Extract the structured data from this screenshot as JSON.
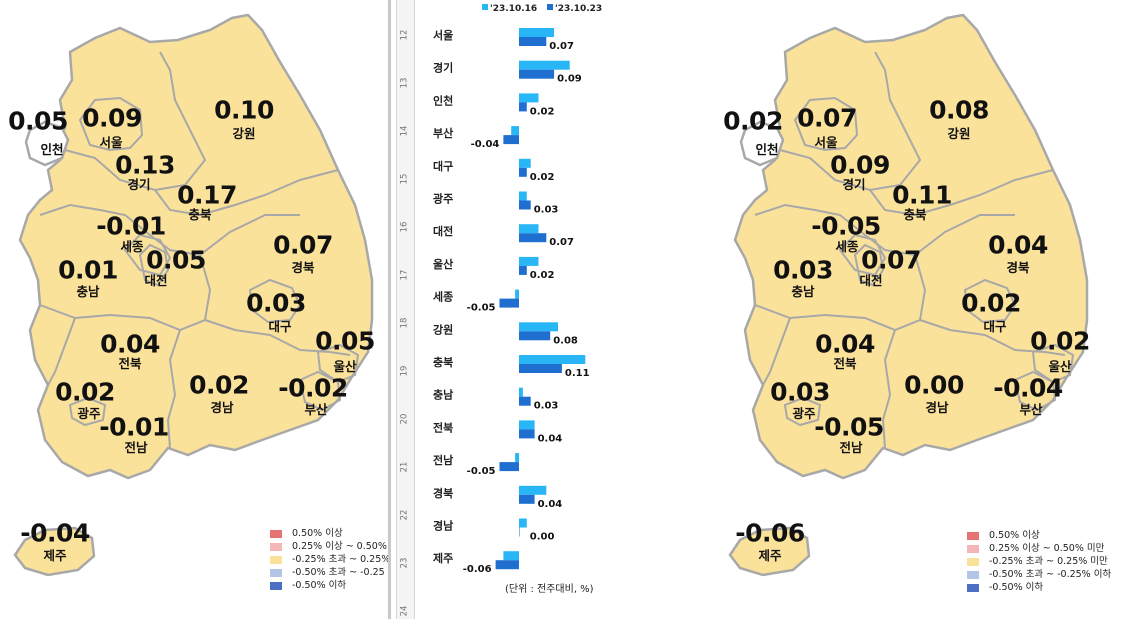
{
  "left_map": {
    "regions": [
      {
        "key": "incheon",
        "name": "인천",
        "value": "0.05"
      },
      {
        "key": "seoul",
        "name": "서울",
        "value": "0.09"
      },
      {
        "key": "gyeonggi",
        "name": "경기",
        "value": "0.13"
      },
      {
        "key": "gangwon",
        "name": "강원",
        "value": "0.10"
      },
      {
        "key": "chungbuk",
        "name": "충북",
        "value": "0.17"
      },
      {
        "key": "sejong",
        "name": "세종",
        "value": "-0.01"
      },
      {
        "key": "daejeon",
        "name": "대전",
        "value": "0.05"
      },
      {
        "key": "chungnam",
        "name": "충남",
        "value": "0.01"
      },
      {
        "key": "gyeongbuk",
        "name": "경북",
        "value": "0.07"
      },
      {
        "key": "daegu",
        "name": "대구",
        "value": "0.03"
      },
      {
        "key": "ulsan",
        "name": "울산",
        "value": "0.05"
      },
      {
        "key": "jeonbuk",
        "name": "전북",
        "value": "0.04"
      },
      {
        "key": "gwangju",
        "name": "광주",
        "value": "0.02"
      },
      {
        "key": "jeonnam",
        "name": "전남",
        "value": "-0.01"
      },
      {
        "key": "gyeongnam",
        "name": "경남",
        "value": "0.02"
      },
      {
        "key": "busan",
        "name": "부산",
        "value": "-0.02"
      },
      {
        "key": "jeju",
        "name": "제주",
        "value": "-0.04"
      }
    ],
    "legend": [
      {
        "label": "0.50% 이상",
        "color": "#e57373"
      },
      {
        "label": "0.25% 이상 ~ 0.50%",
        "color": "#f4b6b6"
      },
      {
        "label": "-0.25% 초과 ~ 0.25%",
        "color": "#fbe29b"
      },
      {
        "label": "-0.50% 초과 ~ -0.25",
        "color": "#b4c4e6"
      },
      {
        "label": "-0.50% 이하",
        "color": "#4a6fc4"
      }
    ]
  },
  "right_map": {
    "regions": [
      {
        "key": "incheon",
        "name": "인천",
        "value": "0.02"
      },
      {
        "key": "seoul",
        "name": "서울",
        "value": "0.07"
      },
      {
        "key": "gyeonggi",
        "name": "경기",
        "value": "0.09"
      },
      {
        "key": "gangwon",
        "name": "강원",
        "value": "0.08"
      },
      {
        "key": "chungbuk",
        "name": "충북",
        "value": "0.11"
      },
      {
        "key": "sejong",
        "name": "세종",
        "value": "-0.05"
      },
      {
        "key": "daejeon",
        "name": "대전",
        "value": "0.07"
      },
      {
        "key": "chungnam",
        "name": "충남",
        "value": "0.03"
      },
      {
        "key": "gyeongbuk",
        "name": "경북",
        "value": "0.04"
      },
      {
        "key": "daegu",
        "name": "대구",
        "value": "0.02"
      },
      {
        "key": "ulsan",
        "name": "울산",
        "value": "0.02"
      },
      {
        "key": "jeonbuk",
        "name": "전북",
        "value": "0.04"
      },
      {
        "key": "gwangju",
        "name": "광주",
        "value": "0.03"
      },
      {
        "key": "jeonnam",
        "name": "전남",
        "value": "-0.05"
      },
      {
        "key": "gyeongnam",
        "name": "경남",
        "value": "0.00"
      },
      {
        "key": "busan",
        "name": "부산",
        "value": "-0.04"
      },
      {
        "key": "jeju",
        "name": "제주",
        "value": "-0.06"
      }
    ],
    "legend": [
      {
        "label": "0.50% 이상",
        "color": "#e57373"
      },
      {
        "label": "0.25% 이상 ~ 0.50% 미만",
        "color": "#f4b6b6"
      },
      {
        "label": "-0.25% 초과 ~ 0.25% 미만",
        "color": "#fbe29b"
      },
      {
        "label": "-0.50% 초과 ~ -0.25% 이하",
        "color": "#b4c4e6"
      },
      {
        "label": "-0.50% 이하",
        "color": "#4a6fc4"
      }
    ]
  },
  "colors": {
    "land": "#fbe29b",
    "border": "#a8a8a8",
    "series_prev": "#29b6f6",
    "series_curr": "#1e6fd0"
  },
  "ruler_ticks": [
    "12",
    "13",
    "14",
    "15",
    "16",
    "17",
    "18",
    "19",
    "20",
    "21",
    "22",
    "23",
    "24"
  ],
  "chart_data": {
    "type": "bar",
    "orientation": "horizontal",
    "categories": [
      "서울",
      "경기",
      "인천",
      "부산",
      "대구",
      "광주",
      "대전",
      "울산",
      "세종",
      "강원",
      "충북",
      "충남",
      "전북",
      "전남",
      "경북",
      "경남",
      "제주"
    ],
    "series": [
      {
        "name": "'23.10.16",
        "values": [
          0.09,
          0.13,
          0.05,
          -0.02,
          0.03,
          0.02,
          0.05,
          0.05,
          -0.01,
          0.1,
          0.17,
          0.01,
          0.04,
          -0.01,
          0.07,
          0.02,
          -0.04
        ]
      },
      {
        "name": "'23.10.23",
        "values": [
          0.07,
          0.09,
          0.02,
          -0.04,
          0.02,
          0.03,
          0.07,
          0.02,
          -0.05,
          0.08,
          0.11,
          0.03,
          0.04,
          -0.05,
          0.04,
          0.0,
          -0.06
        ]
      }
    ],
    "data_labels": [
      "0.07",
      "0.09",
      "0.02",
      "-0.04",
      "0.02",
      "0.03",
      "0.07",
      "0.02",
      "-0.05",
      "0.08",
      "0.11",
      "0.03",
      "0.04",
      "-0.05",
      "0.04",
      "0.00",
      "-0.06"
    ],
    "unit_note": "(단위 : 전주대비, %)",
    "xlim": [
      -0.08,
      0.18
    ]
  }
}
